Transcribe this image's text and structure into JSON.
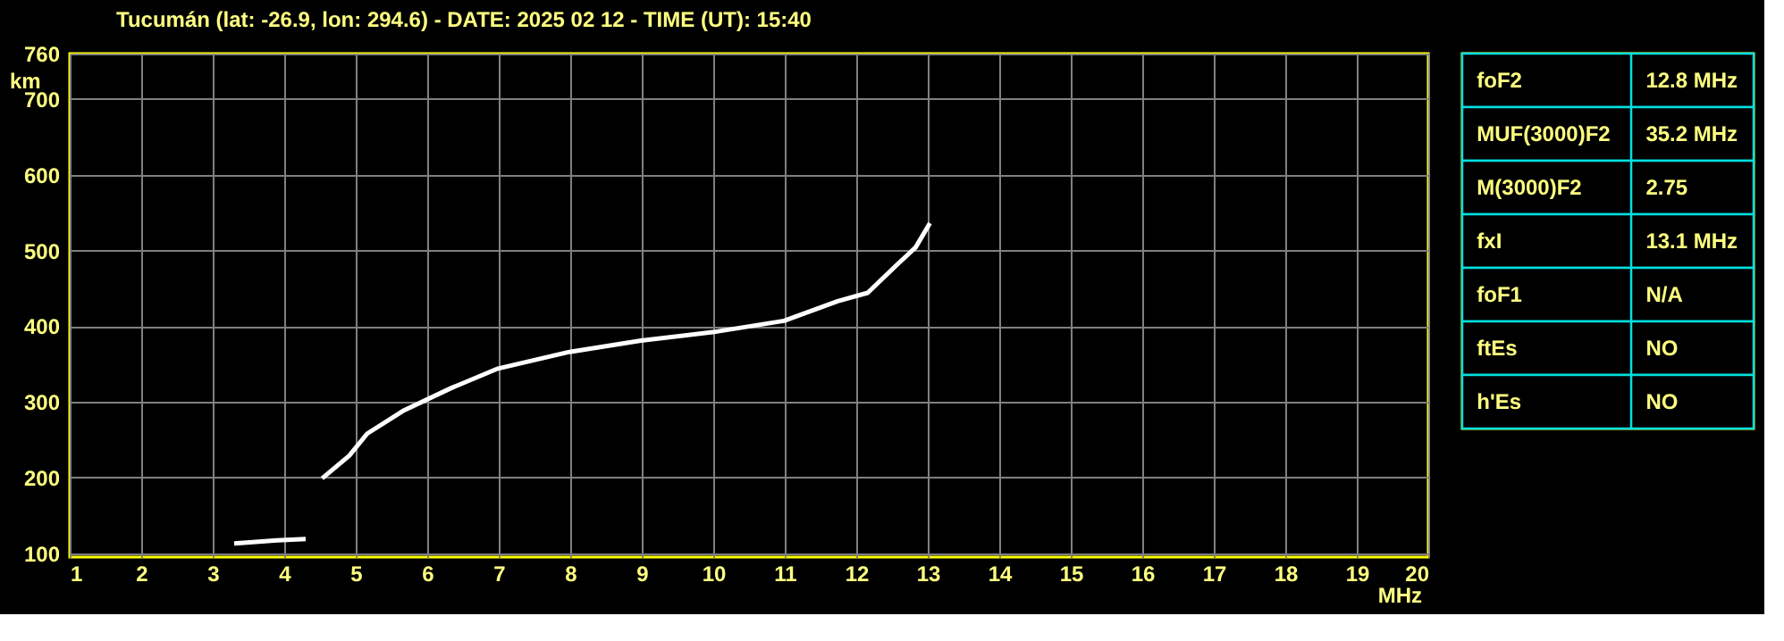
{
  "chart_data": [
    {
      "type": "line",
      "title": "Tucumán (lat: -26.9, lon: 294.6) - DATE: 2025 02 12 - TIME (UT): 15:40",
      "xlabel": "MHz",
      "ylabel": "km",
      "series": [
        {
          "color": "#ffffff",
          "x": [
            3.3,
            3.6,
            3.9,
            4.3
          ],
          "values": [
            113,
            115,
            117,
            119
          ]
        },
        {
          "color": "#ffffff",
          "x": [
            4.53,
            4.91,
            5.16,
            5.66,
            6.33,
            6.99,
            7.99,
            8.99,
            9.99,
            10.99,
            11.74,
            12.16,
            12.58,
            12.83,
            13.03
          ],
          "values": [
            199,
            229,
            258,
            288,
            318,
            344,
            366,
            381,
            392,
            407,
            433,
            444,
            482,
            504,
            536
          ]
        }
      ],
      "xlim": [
        1,
        20
      ],
      "xticks": [
        1,
        2,
        3,
        4,
        5,
        6,
        7,
        8,
        9,
        10,
        11,
        12,
        13,
        14,
        15,
        16,
        17,
        18,
        19,
        20
      ],
      "ylim": [
        95,
        760
      ],
      "yticks": [
        100,
        200,
        300,
        400,
        500,
        600,
        700,
        760
      ],
      "grid": true,
      "legend": false,
      "marker": "none",
      "line_style": "solid"
    },
    {
      "type": "other",
      "annotations": [
        "foF2",
        "12.8 MHz",
        "MUF(3000)F2",
        "35.2 MHz",
        "M(3000)F2",
        "2.75",
        "fxI",
        "13.1 MHz",
        "foF1",
        "N/A",
        "ftEs",
        "NO",
        "h'Es",
        "NO"
      ]
    }
  ]
}
